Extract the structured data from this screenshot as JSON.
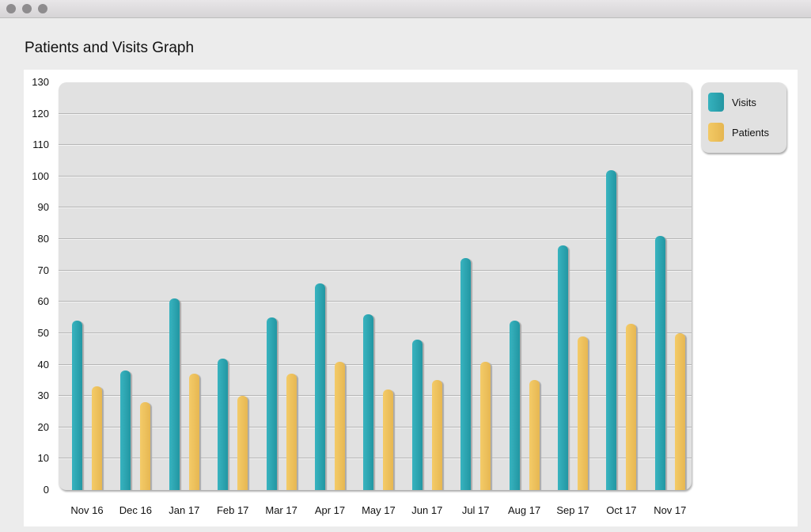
{
  "window": {
    "traffic_lights": [
      "close",
      "minimize",
      "zoom"
    ]
  },
  "page": {
    "title": "Patients and Visits Graph"
  },
  "colors": {
    "visits": "#2ea8b5",
    "patients": "#efc35c"
  },
  "legend": {
    "items": [
      {
        "label": "Visits",
        "color": "#2ea8b5"
      },
      {
        "label": "Patients",
        "color": "#efc35c"
      }
    ]
  },
  "chart_data": {
    "type": "bar",
    "title": "Patients and Visits Graph",
    "xlabel": "",
    "ylabel": "",
    "ylim": [
      0,
      130
    ],
    "yticks": [
      0,
      10,
      20,
      30,
      40,
      50,
      60,
      70,
      80,
      90,
      100,
      110,
      120,
      130
    ],
    "grid": true,
    "legend_position": "right-top",
    "categories": [
      "Nov 16",
      "Dec 16",
      "Jan 17",
      "Feb 17",
      "Mar 17",
      "Apr 17",
      "May 17",
      "Jun 17",
      "Jul 17",
      "Aug 17",
      "Sep 17",
      "Oct 17",
      "Nov 17"
    ],
    "series": [
      {
        "name": "Visits",
        "color": "#2ea8b5",
        "values": [
          54,
          38,
          61,
          42,
          55,
          66,
          56,
          48,
          74,
          54,
          78,
          102,
          81
        ]
      },
      {
        "name": "Patients",
        "color": "#efc35c",
        "values": [
          33,
          28,
          37,
          30,
          37,
          41,
          32,
          35,
          41,
          35,
          49,
          53,
          50
        ]
      }
    ]
  }
}
